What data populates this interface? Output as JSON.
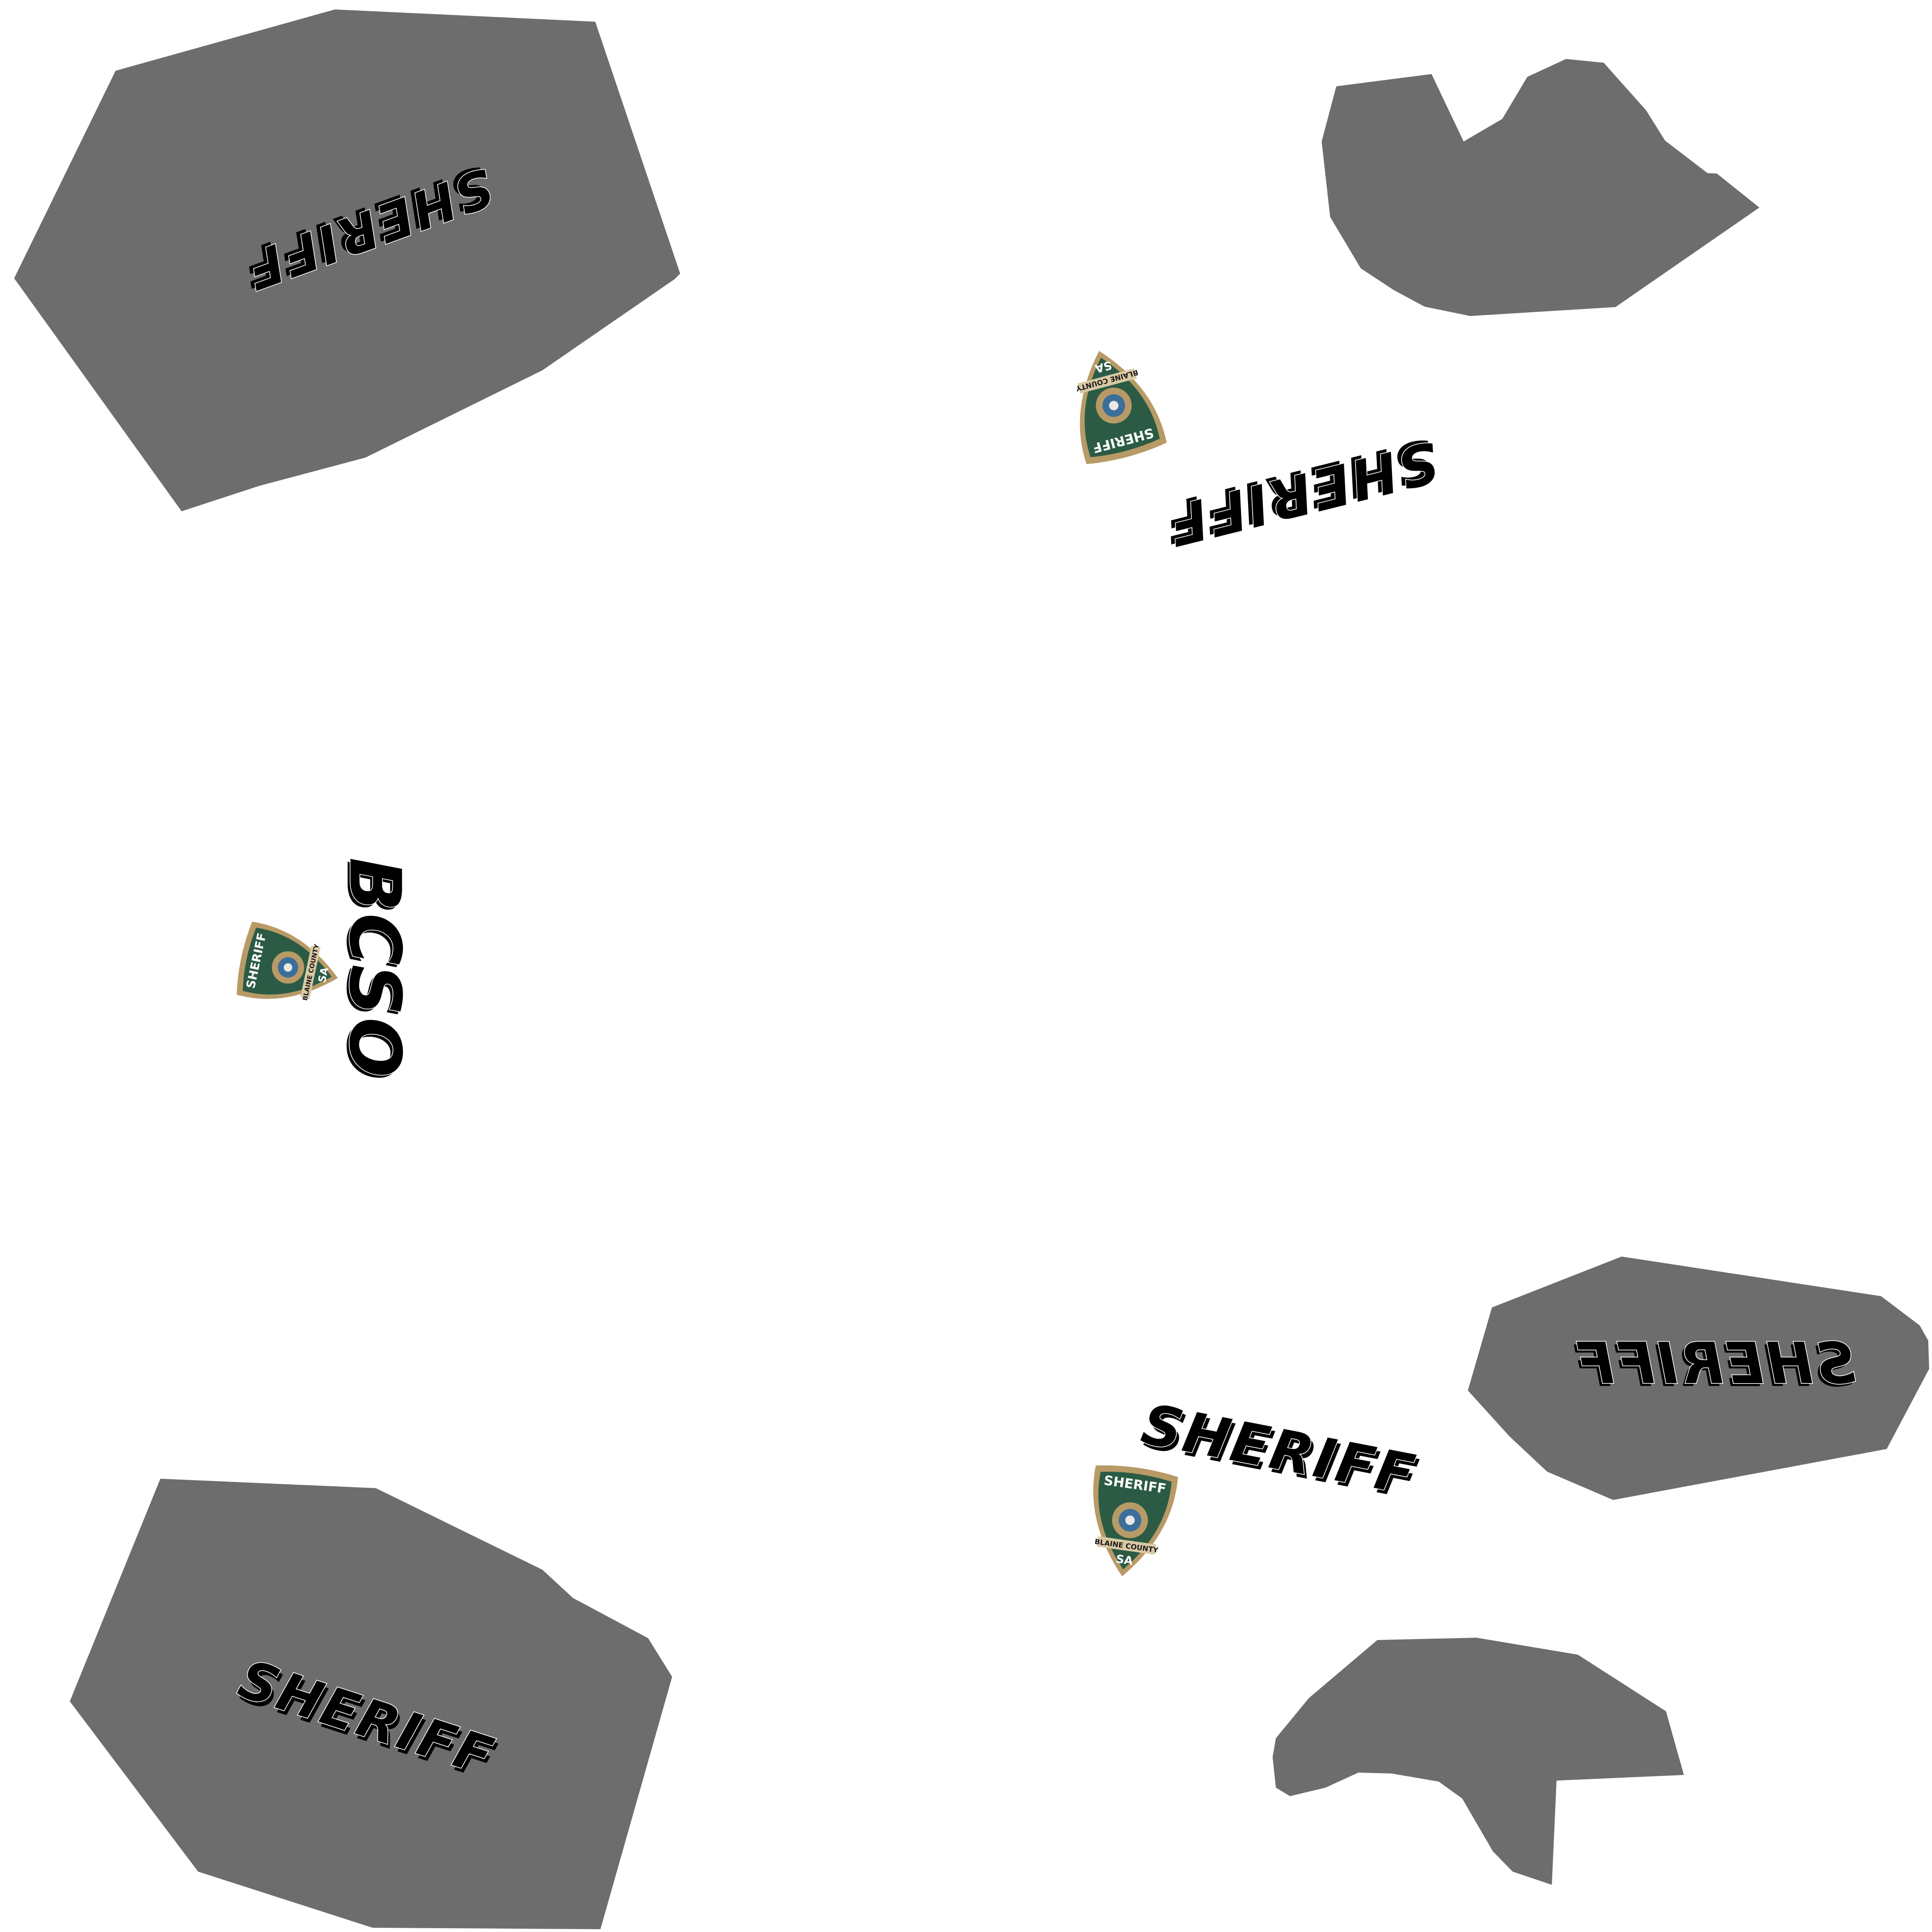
{
  "texture": {
    "background_color": "#ffffff",
    "panel_color": "#6d6d6d",
    "badge_green": "#2b5b45",
    "badge_gold": "#b89a66",
    "decals": {
      "sheriff_1": "SHERIFF",
      "sheriff_2": "SHERIFF",
      "sheriff_3": "SHERIFF",
      "sheriff_4": "SHERIFF",
      "sheriff_5": "SHERIFF",
      "bcso": "BCSO"
    },
    "badges": {
      "badge_top": {
        "line1": "SHERIFF",
        "line2": "BLAINE COUNTY",
        "line3": "SA"
      },
      "badge_left": {
        "line1": "SHERIFF",
        "line2": "BLAINE COUNTY",
        "line3": "SA"
      },
      "badge_bottom": {
        "line1": "SHERIFF",
        "line2": "BLAINE COUNTY",
        "line3": "SA"
      }
    }
  }
}
